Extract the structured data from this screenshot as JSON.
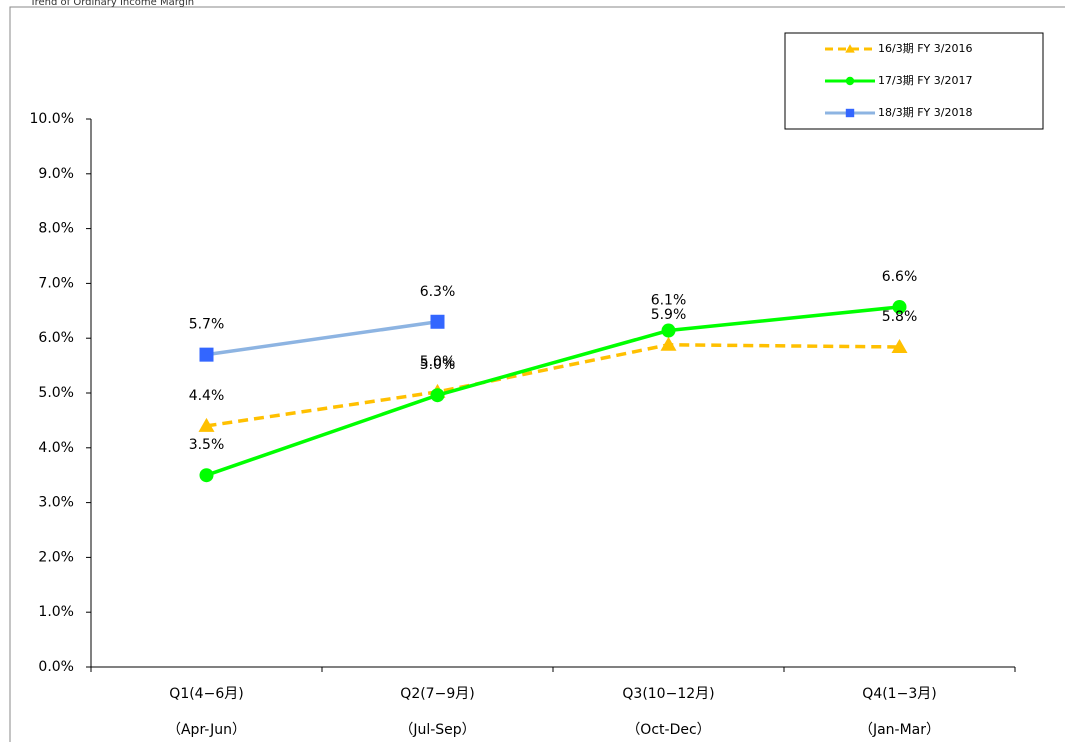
{
  "chart_data": {
    "type": "line",
    "title": "Trend of Ordinary Income Margin",
    "categories": [
      "Q1(4−6月)",
      "Q2(7−9月)",
      "Q3(10−12月)",
      "Q4(1−3月)"
    ],
    "category_notes": [
      "（Apr-Jun）",
      "（Jul-Sep）",
      "（Oct-Dec）",
      "（Jan-Mar）"
    ],
    "ylim": [
      0,
      10
    ],
    "yticks": [
      {
        "value": 0,
        "label": "0.0%"
      },
      {
        "value": 1,
        "label": "1.0%"
      },
      {
        "value": 2,
        "label": "2.0%"
      },
      {
        "value": 3,
        "label": "3.0%"
      },
      {
        "value": 4,
        "label": "4.0%"
      },
      {
        "value": 5,
        "label": "5.0%"
      },
      {
        "value": 6,
        "label": "6.0%"
      },
      {
        "value": 7,
        "label": "7.0%"
      },
      {
        "value": 8,
        "label": "8.0%"
      },
      {
        "value": 9,
        "label": "9.0%"
      },
      {
        "value": 10,
        "label": "10.0%"
      }
    ],
    "legend": "upper right",
    "series": [
      {
        "name": "16/3期  FY 3/2016",
        "color": "#ffc000",
        "dashed": true,
        "marker": "triangle",
        "values": [
          4.4,
          5.02,
          5.88,
          5.84
        ],
        "value_labels": [
          "4.4%",
          "5.0%",
          "5.9%",
          "5.8%"
        ]
      },
      {
        "name": "17/3期  FY 3/2017",
        "color": "#00ff00",
        "dashed": false,
        "marker": "circle",
        "values": [
          3.5,
          4.96,
          6.14,
          6.57
        ],
        "value_labels": [
          "3.5%",
          "5.0%",
          "6.1%",
          "6.6%"
        ]
      },
      {
        "name": "18/3期  FY 3/2018",
        "color": "#8db4e2",
        "marker_color": "#3366ff",
        "dashed": false,
        "marker": "square",
        "values": [
          5.7,
          6.3,
          null,
          null
        ],
        "value_labels": [
          "5.7%",
          "6.3%",
          null,
          null
        ]
      }
    ]
  }
}
